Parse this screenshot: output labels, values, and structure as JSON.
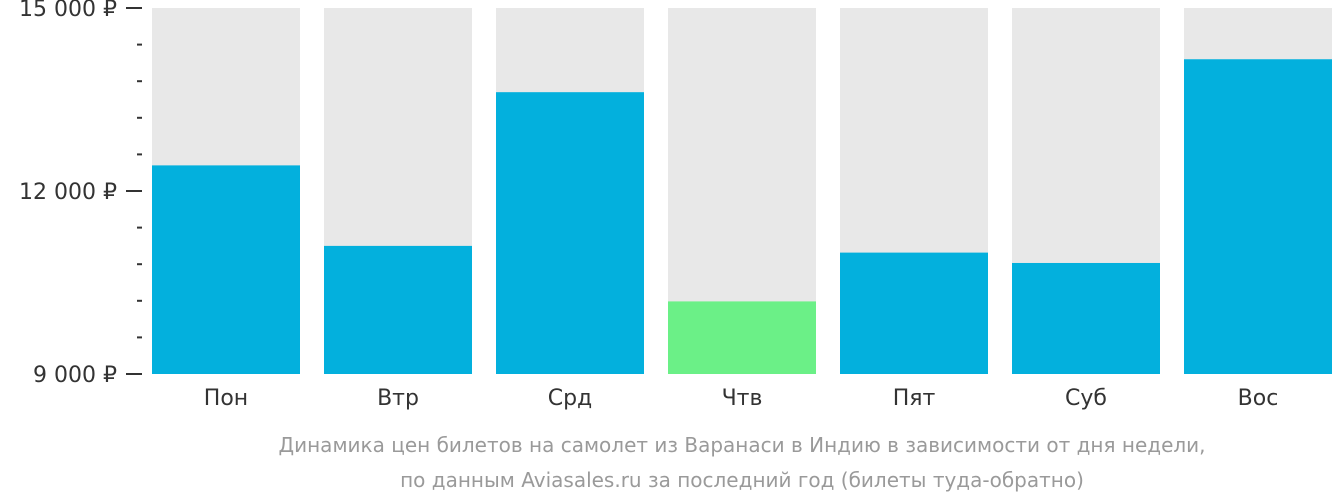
{
  "chart_data": {
    "type": "bar",
    "categories": [
      "Пон",
      "Втр",
      "Срд",
      "Чтв",
      "Пят",
      "Суб",
      "Вос"
    ],
    "values": [
      12420,
      11100,
      13620,
      10190,
      10990,
      10820,
      14160
    ],
    "ylim": [
      9000,
      15000
    ],
    "yticks": [
      {
        "value": 9000,
        "label": "9 000 ₽"
      },
      {
        "value": 12000,
        "label": "12 000 ₽"
      },
      {
        "value": 15000,
        "label": "15 000 ₽"
      }
    ],
    "minor_tick_step": 600,
    "highlight_index": 3,
    "colors": {
      "bar": "#03b0dd",
      "highlight": "#6bf087",
      "track": "#e8e8e8",
      "axis": "#333333"
    },
    "caption": [
      "Динамика цен билетов на самолет из Варанаси в Индию в зависимости от дня недели,",
      "по данным Aviasales.ru за последний год (билеты туда-обратно)"
    ]
  }
}
